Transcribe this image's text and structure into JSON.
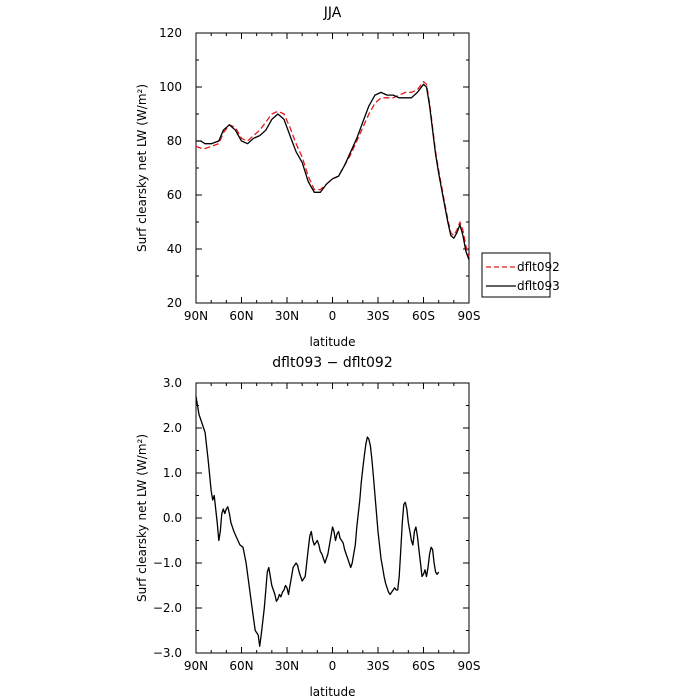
{
  "chart_data": [
    {
      "type": "line",
      "title": "JJA",
      "xlabel": "latitude",
      "ylabel": "Surf clearsky net LW (W/m²)",
      "ylim": [
        20,
        120
      ],
      "xlim": [
        90,
        -90
      ],
      "x_ticks": [
        90,
        60,
        30,
        0,
        -30,
        -60,
        -90
      ],
      "x_tick_labels": [
        "90N",
        "60N",
        "30N",
        "0",
        "30S",
        "60S",
        "90S"
      ],
      "y_ticks": [
        20,
        40,
        60,
        80,
        100,
        120
      ],
      "y_tick_labels": [
        "20",
        "40",
        "60",
        "80",
        "100",
        "120"
      ],
      "legend_position": "right",
      "series": [
        {
          "name": "dflt092",
          "color": "#e31a1c",
          "dash": "dashed",
          "points": [
            [
              90,
              78
            ],
            [
              85,
              77
            ],
            [
              80,
              78
            ],
            [
              75,
              79
            ],
            [
              72,
              83
            ],
            [
              68,
              86
            ],
            [
              64,
              85
            ],
            [
              60,
              81
            ],
            [
              56,
              80
            ],
            [
              52,
              82
            ],
            [
              48,
              84
            ],
            [
              44,
              87
            ],
            [
              40,
              90
            ],
            [
              36,
              91
            ],
            [
              32,
              90
            ],
            [
              28,
              85
            ],
            [
              24,
              79
            ],
            [
              20,
              74
            ],
            [
              16,
              67
            ],
            [
              12,
              62
            ],
            [
              8,
              62
            ],
            [
              4,
              64
            ],
            [
              0,
              66
            ],
            [
              -4,
              67
            ],
            [
              -8,
              71
            ],
            [
              -12,
              75
            ],
            [
              -16,
              80
            ],
            [
              -20,
              85
            ],
            [
              -24,
              90
            ],
            [
              -28,
              94
            ],
            [
              -32,
              96
            ],
            [
              -36,
              96
            ],
            [
              -40,
              96
            ],
            [
              -44,
              97
            ],
            [
              -48,
              98
            ],
            [
              -52,
              98
            ],
            [
              -56,
              99
            ],
            [
              -60,
              102
            ],
            [
              -62,
              101
            ],
            [
              -64,
              94
            ],
            [
              -66,
              85
            ],
            [
              -68,
              76
            ],
            [
              -70,
              69
            ],
            [
              -72,
              63
            ],
            [
              -74,
              57
            ],
            [
              -76,
              51
            ],
            [
              -78,
              46
            ],
            [
              -80,
              45
            ],
            [
              -82,
              47
            ],
            [
              -84,
              50
            ],
            [
              -86,
              47
            ],
            [
              -88,
              41
            ],
            [
              -90,
              37
            ]
          ]
        },
        {
          "name": "dflt093",
          "color": "#000000",
          "dash": "solid",
          "points": [
            [
              90,
              80
            ],
            [
              87,
              80
            ],
            [
              84,
              79
            ],
            [
              80,
              79
            ],
            [
              75,
              80
            ],
            [
              72,
              84
            ],
            [
              68,
              86
            ],
            [
              64,
              84
            ],
            [
              60,
              80
            ],
            [
              56,
              79
            ],
            [
              52,
              81
            ],
            [
              48,
              82
            ],
            [
              44,
              84
            ],
            [
              40,
              88
            ],
            [
              36,
              90
            ],
            [
              32,
              88
            ],
            [
              28,
              82
            ],
            [
              24,
              76
            ],
            [
              20,
              72
            ],
            [
              16,
              65
            ],
            [
              12,
              61
            ],
            [
              8,
              61
            ],
            [
              4,
              64
            ],
            [
              0,
              66
            ],
            [
              -4,
              67
            ],
            [
              -8,
              71
            ],
            [
              -12,
              76
            ],
            [
              -16,
              81
            ],
            [
              -20,
              87
            ],
            [
              -24,
              93
            ],
            [
              -28,
              97
            ],
            [
              -32,
              98
            ],
            [
              -36,
              97
            ],
            [
              -40,
              97
            ],
            [
              -44,
              96
            ],
            [
              -48,
              96
            ],
            [
              -52,
              96
            ],
            [
              -56,
              98
            ],
            [
              -60,
              101
            ],
            [
              -62,
              100
            ],
            [
              -64,
              93
            ],
            [
              -66,
              84
            ],
            [
              -68,
              75
            ],
            [
              -70,
              68
            ],
            [
              -72,
              62
            ],
            [
              -74,
              56
            ],
            [
              -76,
              50
            ],
            [
              -78,
              45
            ],
            [
              -80,
              44
            ],
            [
              -82,
              46
            ],
            [
              -84,
              49
            ],
            [
              -86,
              45
            ],
            [
              -88,
              39
            ],
            [
              -90,
              36
            ]
          ]
        }
      ]
    },
    {
      "type": "line",
      "title": "dflt093 − dflt092",
      "xlabel": "latitude",
      "ylabel": "Surf clearsky net LW (W/m²)",
      "ylim": [
        -3.0,
        3.0
      ],
      "xlim": [
        90,
        -90
      ],
      "x_ticks": [
        90,
        60,
        30,
        0,
        -30,
        -60,
        -90
      ],
      "x_tick_labels": [
        "90N",
        "60N",
        "30N",
        "0",
        "30S",
        "60S",
        "90S"
      ],
      "y_ticks": [
        -3,
        -2,
        -1,
        0,
        1,
        2,
        3
      ],
      "y_tick_labels": [
        "−3.0",
        "−2.0",
        "−1.0",
        "0.0",
        "1.0",
        "2.0",
        "3.0"
      ],
      "series": [
        {
          "color": "#000000",
          "dash": "solid",
          "points": [
            [
              90,
              2.7
            ],
            [
              88,
              2.3
            ],
            [
              86,
              2.1
            ],
            [
              84,
              1.9
            ],
            [
              82,
              1.3
            ],
            [
              80,
              0.6
            ],
            [
              79,
              0.4
            ],
            [
              78,
              0.5
            ],
            [
              77,
              0.2
            ],
            [
              76,
              -0.1
            ],
            [
              75,
              -0.5
            ],
            [
              74,
              -0.3
            ],
            [
              73,
              0.1
            ],
            [
              72,
              0.2
            ],
            [
              71,
              0.1
            ],
            [
              70,
              0.2
            ],
            [
              69,
              0.25
            ],
            [
              68,
              0.1
            ],
            [
              67,
              -0.1
            ],
            [
              65,
              -0.3
            ],
            [
              63,
              -0.45
            ],
            [
              61,
              -0.6
            ],
            [
              59,
              -0.65
            ],
            [
              57,
              -1.0
            ],
            [
              55,
              -1.5
            ],
            [
              53,
              -2.0
            ],
            [
              51,
              -2.5
            ],
            [
              49,
              -2.6
            ],
            [
              48,
              -2.85
            ],
            [
              47,
              -2.6
            ],
            [
              45,
              -2.0
            ],
            [
              44,
              -1.6
            ],
            [
              43,
              -1.2
            ],
            [
              42,
              -1.1
            ],
            [
              41,
              -1.3
            ],
            [
              40,
              -1.5
            ],
            [
              38,
              -1.7
            ],
            [
              37,
              -1.85
            ],
            [
              36,
              -1.8
            ],
            [
              35,
              -1.7
            ],
            [
              34,
              -1.75
            ],
            [
              33,
              -1.65
            ],
            [
              32,
              -1.6
            ],
            [
              31,
              -1.5
            ],
            [
              30,
              -1.55
            ],
            [
              29,
              -1.7
            ],
            [
              28,
              -1.5
            ],
            [
              27,
              -1.3
            ],
            [
              26,
              -1.1
            ],
            [
              25,
              -1.05
            ],
            [
              24,
              -1.0
            ],
            [
              23,
              -1.05
            ],
            [
              22,
              -1.2
            ],
            [
              21,
              -1.3
            ],
            [
              20,
              -1.4
            ],
            [
              18,
              -1.3
            ],
            [
              17,
              -1.0
            ],
            [
              16,
              -0.7
            ],
            [
              15,
              -0.4
            ],
            [
              14,
              -0.3
            ],
            [
              13,
              -0.5
            ],
            [
              12,
              -0.6
            ],
            [
              11,
              -0.55
            ],
            [
              10,
              -0.5
            ],
            [
              9,
              -0.6
            ],
            [
              8,
              -0.75
            ],
            [
              7,
              -0.8
            ],
            [
              6,
              -0.9
            ],
            [
              5,
              -1.0
            ],
            [
              3,
              -0.8
            ],
            [
              1,
              -0.4
            ],
            [
              0,
              -0.2
            ],
            [
              -1,
              -0.3
            ],
            [
              -2,
              -0.5
            ],
            [
              -3,
              -0.35
            ],
            [
              -4,
              -0.3
            ],
            [
              -5,
              -0.45
            ],
            [
              -6,
              -0.5
            ],
            [
              -7,
              -0.55
            ],
            [
              -8,
              -0.7
            ],
            [
              -9,
              -0.8
            ],
            [
              -10,
              -0.9
            ],
            [
              -11,
              -1.0
            ],
            [
              -12,
              -1.1
            ],
            [
              -13,
              -1.0
            ],
            [
              -14,
              -0.8
            ],
            [
              -15,
              -0.6
            ],
            [
              -16,
              -0.2
            ],
            [
              -17,
              0.1
            ],
            [
              -18,
              0.4
            ],
            [
              -19,
              0.8
            ],
            [
              -20,
              1.1
            ],
            [
              -21,
              1.4
            ],
            [
              -22,
              1.65
            ],
            [
              -23,
              1.8
            ],
            [
              -24,
              1.75
            ],
            [
              -25,
              1.6
            ],
            [
              -26,
              1.3
            ],
            [
              -27,
              0.9
            ],
            [
              -28,
              0.5
            ],
            [
              -29,
              0.1
            ],
            [
              -30,
              -0.3
            ],
            [
              -31,
              -0.6
            ],
            [
              -32,
              -0.9
            ],
            [
              -33,
              -1.1
            ],
            [
              -34,
              -1.3
            ],
            [
              -35,
              -1.45
            ],
            [
              -36,
              -1.55
            ],
            [
              -37,
              -1.65
            ],
            [
              -38,
              -1.7
            ],
            [
              -39,
              -1.65
            ],
            [
              -40,
              -1.6
            ],
            [
              -41,
              -1.55
            ],
            [
              -42,
              -1.6
            ],
            [
              -43,
              -1.6
            ],
            [
              -44,
              -1.3
            ],
            [
              -45,
              -0.7
            ],
            [
              -46,
              -0.1
            ],
            [
              -47,
              0.3
            ],
            [
              -48,
              0.35
            ],
            [
              -49,
              0.2
            ],
            [
              -50,
              -0.1
            ],
            [
              -51,
              -0.3
            ],
            [
              -52,
              -0.5
            ],
            [
              -53,
              -0.6
            ],
            [
              -54,
              -0.3
            ],
            [
              -55,
              -0.2
            ],
            [
              -56,
              -0.4
            ],
            [
              -57,
              -0.7
            ],
            [
              -58,
              -1.0
            ],
            [
              -59,
              -1.3
            ],
            [
              -60,
              -1.25
            ],
            [
              -61,
              -1.15
            ],
            [
              -62,
              -1.3
            ],
            [
              -63,
              -1.1
            ],
            [
              -64,
              -0.8
            ],
            [
              -65,
              -0.65
            ],
            [
              -66,
              -0.7
            ],
            [
              -67,
              -1.0
            ],
            [
              -68,
              -1.2
            ],
            [
              -69,
              -1.25
            ],
            [
              -70,
              -1.2
            ]
          ]
        }
      ]
    }
  ]
}
